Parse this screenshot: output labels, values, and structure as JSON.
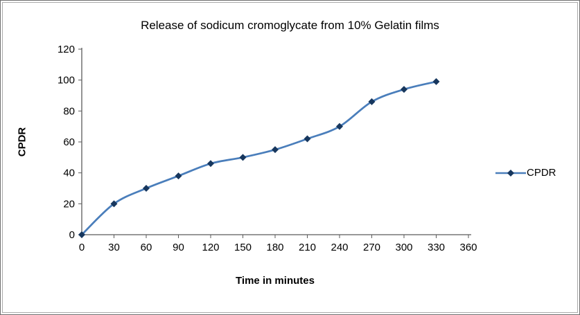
{
  "chart_data": {
    "type": "line",
    "title": "Release of sodicum cromoglycate from 10% Gelatin films",
    "xlabel": "Time in minutes",
    "ylabel": "CPDR",
    "x": [
      0,
      30,
      60,
      90,
      120,
      150,
      180,
      210,
      240,
      270,
      300,
      330
    ],
    "series": [
      {
        "name": "CPDR",
        "values": [
          0,
          20,
          30,
          38,
          46,
          50,
          55,
          62,
          70,
          86,
          94,
          99
        ]
      }
    ],
    "xlim": [
      0,
      360
    ],
    "ylim": [
      0,
      120
    ],
    "x_ticks": [
      0,
      30,
      60,
      90,
      120,
      150,
      180,
      210,
      240,
      270,
      300,
      330,
      360
    ],
    "y_ticks": [
      0,
      20,
      40,
      60,
      80,
      100,
      120
    ],
    "grid": false,
    "legend_position": "right",
    "marker": "diamond",
    "line_color": "#4a7ebb",
    "marker_color": "#17375e"
  }
}
